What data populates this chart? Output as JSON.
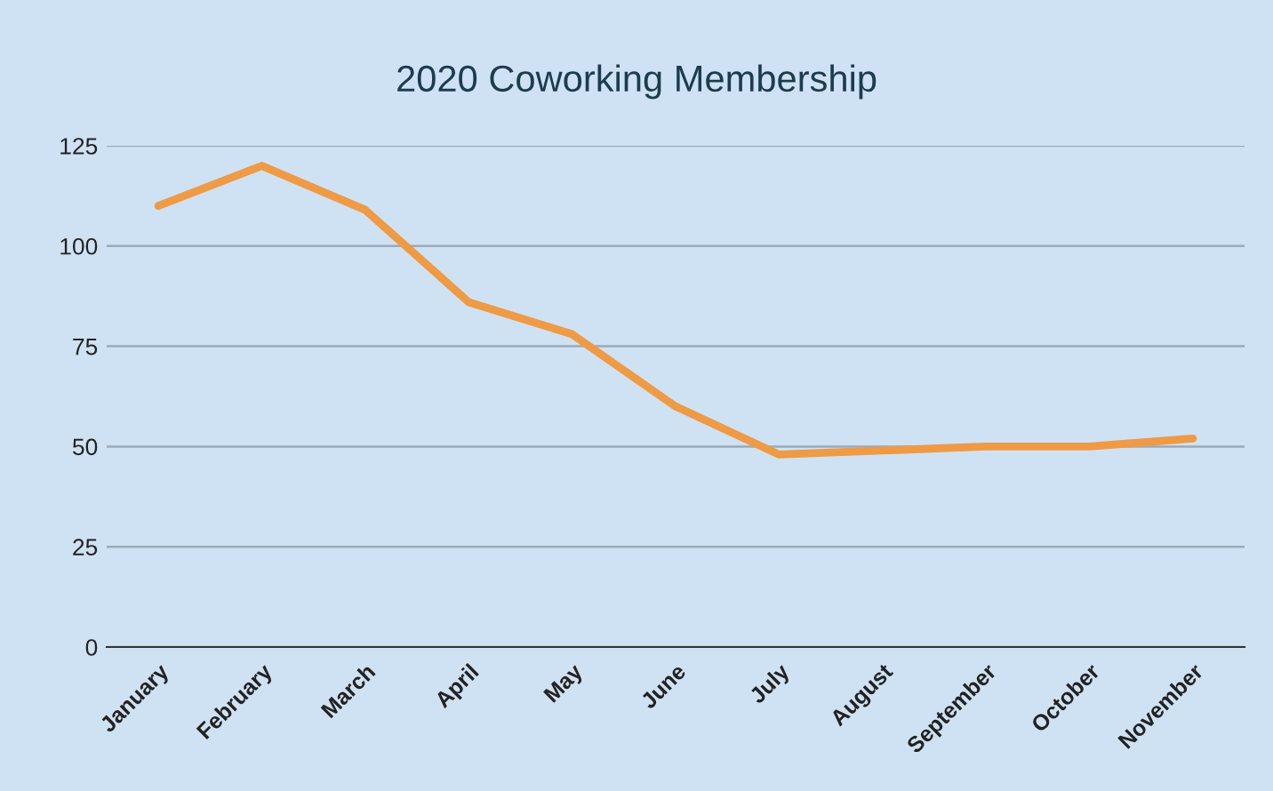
{
  "chart_data": {
    "type": "line",
    "title": "2020 Coworking Membership",
    "categories": [
      "January",
      "February",
      "March",
      "April",
      "May",
      "June",
      "July",
      "August",
      "September",
      "October",
      "November"
    ],
    "series": [
      {
        "color": "#ef9a45",
        "values": [
          110,
          120,
          109,
          86,
          78,
          60,
          48,
          49,
          50,
          50,
          52
        ]
      }
    ],
    "ylim": [
      0,
      125
    ],
    "yticks": [
      0,
      25,
      50,
      75,
      100,
      125
    ],
    "grid": "y",
    "legend": false,
    "marker": "none",
    "line_style": "solid"
  }
}
